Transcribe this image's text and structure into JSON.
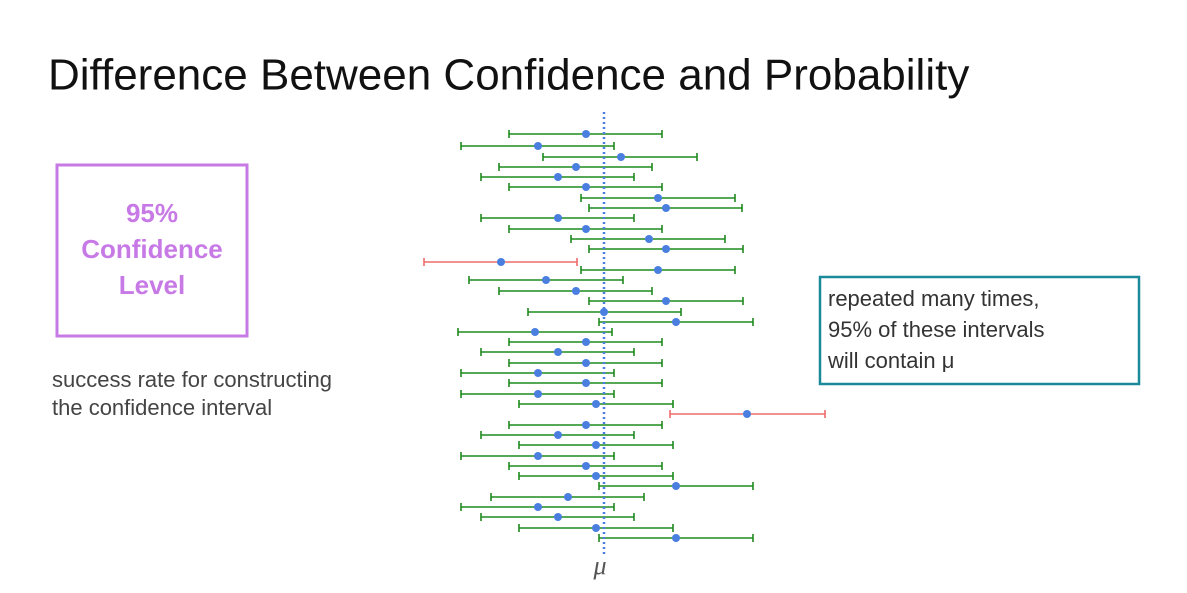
{
  "title": "Difference Between Confidence and Probability",
  "confidence_box": {
    "lines": [
      "95%",
      "Confidence",
      "Level"
    ]
  },
  "caption": {
    "lines": [
      "success rate for constructing",
      "the confidence interval"
    ]
  },
  "note_box": {
    "lines": [
      "repeated many times,",
      "95% of these intervals",
      "will contain μ"
    ]
  },
  "mean_label": "μ"
}
